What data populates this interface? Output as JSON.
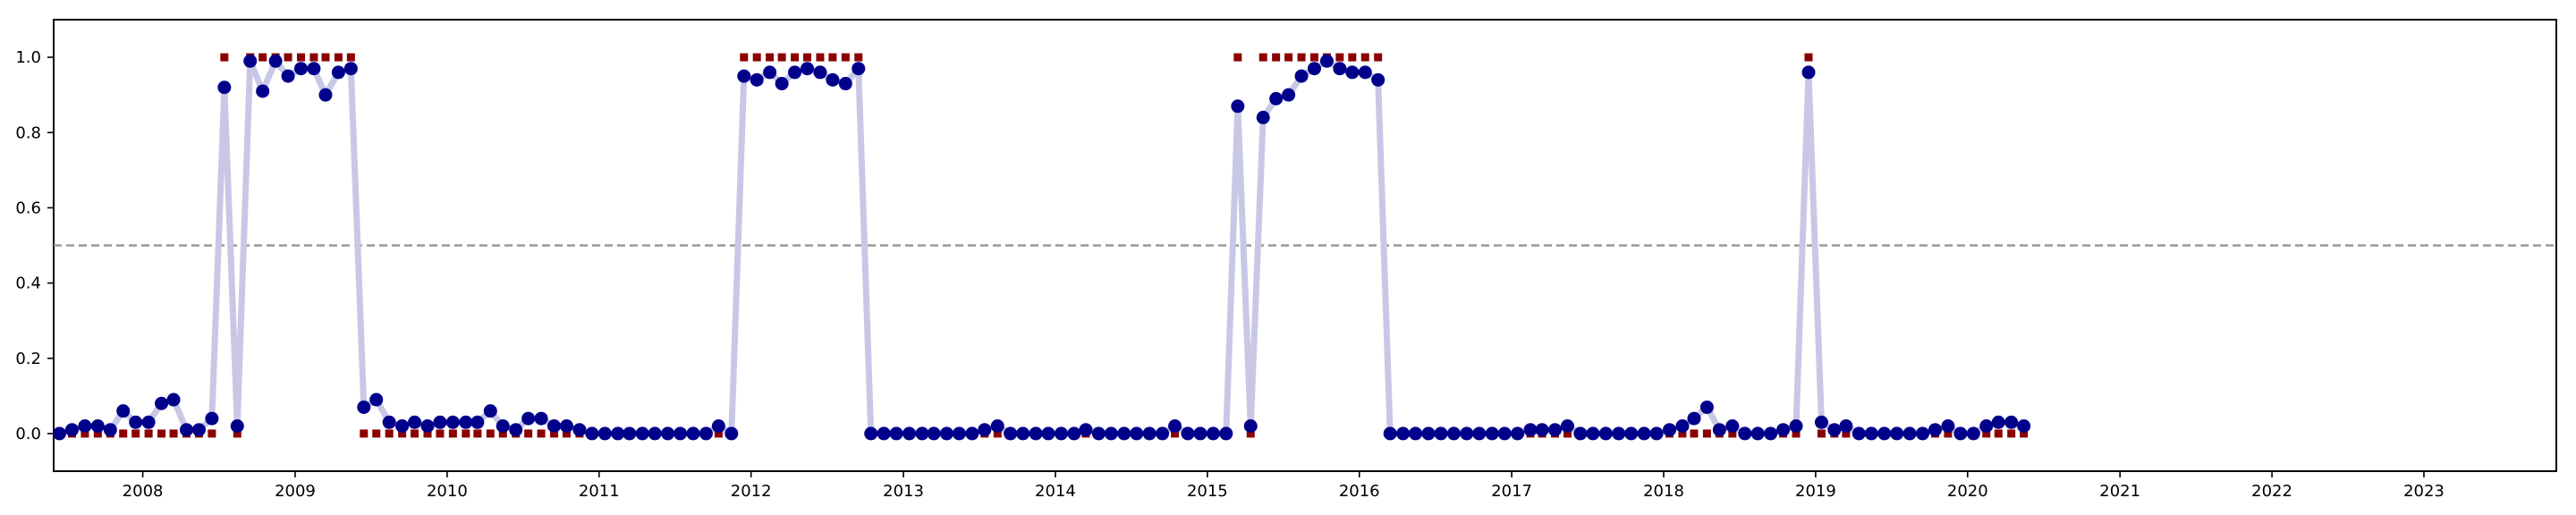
{
  "chart_data": {
    "type": "scatter",
    "title": "",
    "xlabel": "",
    "ylabel": "",
    "xlim": [
      "2007-06-01",
      "2023-11-15"
    ],
    "ylim": [
      -0.1,
      1.1
    ],
    "x_ticks": [
      "2008",
      "2009",
      "2010",
      "2011",
      "2012",
      "2013",
      "2014",
      "2015",
      "2016",
      "2017",
      "2018",
      "2019",
      "2020",
      "2021",
      "2022",
      "2023"
    ],
    "y_ticks": [
      "0.0",
      "0.2",
      "0.4",
      "0.6",
      "0.8",
      "1.0"
    ],
    "threshold": 0.5,
    "grid": false,
    "legend": "none",
    "colors": {
      "probability_line": "#c8c8e6",
      "probability_points": "#00008b",
      "binary_markers": "#8b0000",
      "threshold_line": "#999999"
    },
    "x": [
      "2007-06",
      "2007-07",
      "2007-08",
      "2007-09",
      "2007-10",
      "2007-11",
      "2007-12",
      "2008-01",
      "2008-02",
      "2008-03",
      "2008-04",
      "2008-05",
      "2008-06",
      "2008-07",
      "2008-08",
      "2008-09",
      "2008-10",
      "2008-11",
      "2008-12",
      "2009-01",
      "2009-02",
      "2009-03",
      "2009-04",
      "2009-05",
      "2009-06",
      "2009-07",
      "2009-08",
      "2009-09",
      "2009-10",
      "2009-11",
      "2009-12",
      "2010-01",
      "2010-02",
      "2010-03",
      "2010-04",
      "2010-05",
      "2010-06",
      "2010-07",
      "2010-08",
      "2010-09",
      "2010-10",
      "2010-11",
      "2010-12",
      "2011-01",
      "2011-02",
      "2011-03",
      "2011-04",
      "2011-05",
      "2011-06",
      "2011-07",
      "2011-08",
      "2011-09",
      "2011-10",
      "2011-11",
      "2011-12",
      "2012-01",
      "2012-02",
      "2012-03",
      "2012-04",
      "2012-05",
      "2012-06",
      "2012-07",
      "2012-08",
      "2012-09",
      "2012-10",
      "2012-11",
      "2012-12",
      "2013-01",
      "2013-02",
      "2013-03",
      "2013-04",
      "2013-05",
      "2013-06",
      "2013-07",
      "2013-08",
      "2013-09",
      "2013-10",
      "2013-11",
      "2013-12",
      "2014-01",
      "2014-02",
      "2014-03",
      "2014-04",
      "2014-05",
      "2014-06",
      "2014-07",
      "2014-08",
      "2014-09",
      "2014-10",
      "2014-11",
      "2014-12",
      "2015-01",
      "2015-02",
      "2015-03",
      "2015-04",
      "2015-05",
      "2015-06",
      "2015-07",
      "2015-08",
      "2015-09",
      "2015-10",
      "2015-11",
      "2015-12",
      "2016-01",
      "2016-02",
      "2016-03",
      "2016-04",
      "2016-05",
      "2016-06",
      "2016-07",
      "2016-08",
      "2016-09",
      "2016-10",
      "2016-11",
      "2016-12",
      "2017-01",
      "2017-02",
      "2017-03",
      "2017-04",
      "2017-05",
      "2017-06",
      "2017-07",
      "2017-08",
      "2017-09",
      "2017-10",
      "2017-11",
      "2017-12",
      "2018-01",
      "2018-02",
      "2018-03",
      "2018-04",
      "2018-05",
      "2018-06",
      "2018-07",
      "2018-08",
      "2018-09",
      "2018-10",
      "2018-11",
      "2018-12",
      "2019-01",
      "2019-02",
      "2019-03",
      "2019-04",
      "2019-05",
      "2019-06",
      "2019-07",
      "2019-08",
      "2019-09",
      "2019-10",
      "2019-11",
      "2019-12",
      "2020-01",
      "2020-02",
      "2020-03",
      "2020-04",
      "2020-05"
    ],
    "series": [
      {
        "role": "probability",
        "values": [
          0.0,
          0.01,
          0.02,
          0.02,
          0.01,
          0.06,
          0.03,
          0.03,
          0.08,
          0.09,
          0.01,
          0.01,
          0.04,
          0.92,
          0.02,
          0.99,
          0.91,
          0.99,
          0.95,
          0.97,
          0.97,
          0.9,
          0.96,
          0.97,
          0.07,
          0.09,
          0.03,
          0.02,
          0.03,
          0.02,
          0.03,
          0.03,
          0.03,
          0.03,
          0.06,
          0.02,
          0.01,
          0.04,
          0.04,
          0.02,
          0.02,
          0.01,
          0.0,
          0.0,
          0.0,
          0.0,
          0.0,
          0.0,
          0.0,
          0.0,
          0.0,
          0.0,
          0.02,
          0.0,
          0.95,
          0.94,
          0.96,
          0.93,
          0.96,
          0.97,
          0.96,
          0.94,
          0.93,
          0.97,
          0.0,
          0.0,
          0.0,
          0.0,
          0.0,
          0.0,
          0.0,
          0.0,
          0.0,
          0.01,
          0.02,
          0.0,
          0.0,
          0.0,
          0.0,
          0.0,
          0.0,
          0.01,
          0.0,
          0.0,
          0.0,
          0.0,
          0.0,
          0.0,
          0.02,
          0.0,
          0.0,
          0.0,
          0.0,
          0.87,
          0.02,
          0.84,
          0.89,
          0.9,
          0.95,
          0.97,
          0.99,
          0.97,
          0.96,
          0.96,
          0.94,
          0.0,
          0.0,
          0.0,
          0.0,
          0.0,
          0.0,
          0.0,
          0.0,
          0.0,
          0.0,
          0.0,
          0.01,
          0.01,
          0.01,
          0.02,
          0.0,
          0.0,
          0.0,
          0.0,
          0.0,
          0.0,
          0.0,
          0.01,
          0.02,
          0.04,
          0.07,
          0.01,
          0.02,
          0.0,
          0.0,
          0.0,
          0.01,
          0.02,
          0.96,
          0.03,
          0.01,
          0.02,
          0.0,
          0.0,
          0.0,
          0.0,
          0.0,
          0.0,
          0.01,
          0.02,
          0.0,
          0.0,
          0.02,
          0.03,
          0.03,
          0.02
        ]
      },
      {
        "role": "binary",
        "values": [
          0,
          0,
          0,
          0,
          0,
          0,
          0,
          0,
          0,
          0,
          0,
          0,
          0,
          1,
          0,
          1,
          1,
          1,
          1,
          1,
          1,
          1,
          1,
          1,
          0,
          0,
          0,
          0,
          0,
          0,
          0,
          0,
          0,
          0,
          0,
          0,
          0,
          0,
          0,
          0,
          0,
          0,
          0,
          0,
          0,
          0,
          0,
          0,
          0,
          0,
          0,
          0,
          0,
          0,
          1,
          1,
          1,
          1,
          1,
          1,
          1,
          1,
          1,
          1,
          0,
          0,
          0,
          0,
          0,
          0,
          0,
          0,
          0,
          0,
          0,
          0,
          0,
          0,
          0,
          0,
          0,
          0,
          0,
          0,
          0,
          0,
          0,
          0,
          0,
          0,
          0,
          0,
          0,
          1,
          0,
          1,
          1,
          1,
          1,
          1,
          1,
          1,
          1,
          1,
          1,
          0,
          0,
          0,
          0,
          0,
          0,
          0,
          0,
          0,
          0,
          0,
          0,
          0,
          0,
          0,
          0,
          0,
          0,
          0,
          0,
          0,
          0,
          0,
          0,
          0,
          0,
          0,
          0,
          0,
          0,
          0,
          0,
          0,
          1,
          0,
          0,
          0,
          0,
          0,
          0,
          0,
          0,
          0,
          0,
          0,
          0,
          0,
          0,
          0,
          0,
          0
        ]
      }
    ]
  }
}
